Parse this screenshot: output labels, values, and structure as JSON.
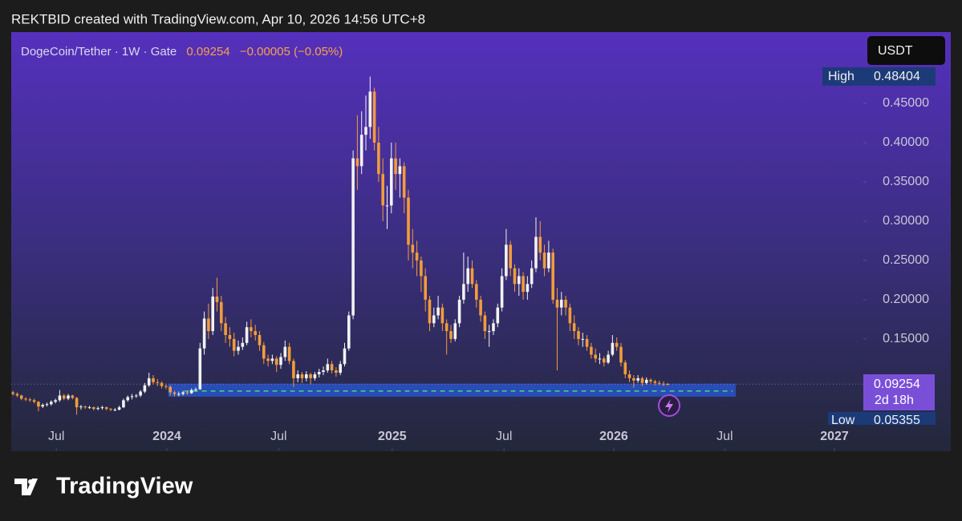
{
  "attribution": "REKTBID created with TradingView.com, Apr 10, 2026 14:56 UTC+8",
  "brand": "TradingView",
  "chart_data": {
    "type": "candlestick",
    "symbol": "DogeCoin/Tether · 1W · Gate",
    "last_price": 0.09254,
    "change": "−0.00005 (−0.05%)",
    "currency": "USDT",
    "high_label": "High",
    "high": 0.48404,
    "low_label": "Low",
    "low": 0.05355,
    "countdown": "2d 18h",
    "up_color": "#f2f2f2",
    "down_color": "#f39c3a",
    "xlim": [
      -0.4,
      199.8
    ],
    "ylim": [
      0.007,
      0.5408
    ],
    "yticks": [
      {
        "value": 0.15,
        "label": "0.15000"
      },
      {
        "value": 0.2,
        "label": "0.20000"
      },
      {
        "value": 0.25,
        "label": "0.25000"
      },
      {
        "value": 0.3,
        "label": "0.30000"
      },
      {
        "value": 0.35,
        "label": "0.35000"
      },
      {
        "value": 0.4,
        "label": "0.40000"
      },
      {
        "value": 0.45,
        "label": "0.45000"
      }
    ],
    "xticks": [
      {
        "value": 10.2,
        "label": "Jul"
      },
      {
        "value": 36.2,
        "label": "2024"
      },
      {
        "value": 62.5,
        "label": "Jul"
      },
      {
        "value": 89.2,
        "label": "2025"
      },
      {
        "value": 115.5,
        "label": "Jul"
      },
      {
        "value": 141.3,
        "label": "2026"
      },
      {
        "value": 167.4,
        "label": "Jul"
      },
      {
        "value": 193.2,
        "label": "2027"
      }
    ],
    "support_zone": {
      "from": 36.5,
      "to": 170,
      "low": 0.0765,
      "high": 0.093,
      "line": 0.0837,
      "color": "#2a52c9",
      "line_color": "#3ddc84"
    },
    "candles": [
      [
        0.082,
        0.084,
        0.078,
        0.08
      ],
      [
        0.08,
        0.082,
        0.076,
        0.078
      ],
      [
        0.078,
        0.079,
        0.072,
        0.074
      ],
      [
        0.074,
        0.076,
        0.071,
        0.073
      ],
      [
        0.073,
        0.075,
        0.07,
        0.072
      ],
      [
        0.072,
        0.074,
        0.068,
        0.07
      ],
      [
        0.07,
        0.071,
        0.058,
        0.064
      ],
      [
        0.064,
        0.068,
        0.062,
        0.066
      ],
      [
        0.066,
        0.069,
        0.064,
        0.067
      ],
      [
        0.067,
        0.072,
        0.065,
        0.07
      ],
      [
        0.07,
        0.074,
        0.068,
        0.072
      ],
      [
        0.072,
        0.085,
        0.07,
        0.078
      ],
      [
        0.078,
        0.08,
        0.072,
        0.074
      ],
      [
        0.074,
        0.08,
        0.072,
        0.078
      ],
      [
        0.078,
        0.079,
        0.073,
        0.075
      ],
      [
        0.075,
        0.076,
        0.05355,
        0.063
      ],
      [
        0.063,
        0.066,
        0.06,
        0.064
      ],
      [
        0.064,
        0.065,
        0.061,
        0.063
      ],
      [
        0.063,
        0.065,
        0.061,
        0.063
      ],
      [
        0.063,
        0.064,
        0.059,
        0.061
      ],
      [
        0.061,
        0.064,
        0.059,
        0.062
      ],
      [
        0.062,
        0.065,
        0.06,
        0.063
      ],
      [
        0.063,
        0.064,
        0.059,
        0.061
      ],
      [
        0.061,
        0.062,
        0.058,
        0.06
      ],
      [
        0.06,
        0.062,
        0.058,
        0.06
      ],
      [
        0.06,
        0.065,
        0.059,
        0.063
      ],
      [
        0.063,
        0.074,
        0.062,
        0.072
      ],
      [
        0.072,
        0.078,
        0.07,
        0.076
      ],
      [
        0.076,
        0.08,
        0.073,
        0.077
      ],
      [
        0.077,
        0.08,
        0.075,
        0.078
      ],
      [
        0.078,
        0.085,
        0.076,
        0.083
      ],
      [
        0.083,
        0.094,
        0.081,
        0.091
      ],
      [
        0.091,
        0.107,
        0.089,
        0.1
      ],
      [
        0.1,
        0.104,
        0.092,
        0.095
      ],
      [
        0.095,
        0.099,
        0.09,
        0.094
      ],
      [
        0.094,
        0.096,
        0.087,
        0.09
      ],
      [
        0.09,
        0.093,
        0.086,
        0.089
      ],
      [
        0.089,
        0.091,
        0.078,
        0.082
      ],
      [
        0.082,
        0.084,
        0.077,
        0.08
      ],
      [
        0.08,
        0.083,
        0.077,
        0.08
      ],
      [
        0.08,
        0.084,
        0.078,
        0.082
      ],
      [
        0.082,
        0.084,
        0.079,
        0.081
      ],
      [
        0.081,
        0.087,
        0.08,
        0.085
      ],
      [
        0.085,
        0.088,
        0.083,
        0.086
      ],
      [
        0.086,
        0.145,
        0.085,
        0.138
      ],
      [
        0.138,
        0.185,
        0.13,
        0.176
      ],
      [
        0.176,
        0.195,
        0.15,
        0.16
      ],
      [
        0.16,
        0.215,
        0.155,
        0.204
      ],
      [
        0.204,
        0.228,
        0.185,
        0.197
      ],
      [
        0.197,
        0.205,
        0.16,
        0.17
      ],
      [
        0.17,
        0.178,
        0.145,
        0.155
      ],
      [
        0.155,
        0.165,
        0.14,
        0.15
      ],
      [
        0.15,
        0.158,
        0.128,
        0.135
      ],
      [
        0.135,
        0.148,
        0.13,
        0.14
      ],
      [
        0.14,
        0.152,
        0.136,
        0.145
      ],
      [
        0.145,
        0.172,
        0.142,
        0.165
      ],
      [
        0.165,
        0.175,
        0.152,
        0.16
      ],
      [
        0.16,
        0.168,
        0.148,
        0.155
      ],
      [
        0.155,
        0.16,
        0.135,
        0.142
      ],
      [
        0.142,
        0.146,
        0.118,
        0.125
      ],
      [
        0.125,
        0.13,
        0.115,
        0.122
      ],
      [
        0.122,
        0.13,
        0.118,
        0.125
      ],
      [
        0.125,
        0.128,
        0.108,
        0.117
      ],
      [
        0.117,
        0.132,
        0.112,
        0.127
      ],
      [
        0.127,
        0.148,
        0.122,
        0.14
      ],
      [
        0.14,
        0.145,
        0.118,
        0.122
      ],
      [
        0.122,
        0.125,
        0.089,
        0.1
      ],
      [
        0.1,
        0.11,
        0.095,
        0.105
      ],
      [
        0.105,
        0.108,
        0.094,
        0.1
      ],
      [
        0.1,
        0.109,
        0.096,
        0.105
      ],
      [
        0.105,
        0.107,
        0.092,
        0.1
      ],
      [
        0.1,
        0.108,
        0.097,
        0.105
      ],
      [
        0.105,
        0.112,
        0.101,
        0.108
      ],
      [
        0.108,
        0.115,
        0.104,
        0.11
      ],
      [
        0.11,
        0.125,
        0.107,
        0.118
      ],
      [
        0.118,
        0.122,
        0.106,
        0.11
      ],
      [
        0.11,
        0.114,
        0.102,
        0.107
      ],
      [
        0.107,
        0.122,
        0.104,
        0.118
      ],
      [
        0.118,
        0.145,
        0.115,
        0.138
      ],
      [
        0.138,
        0.185,
        0.135,
        0.18
      ],
      [
        0.18,
        0.39,
        0.175,
        0.38
      ],
      [
        0.38,
        0.435,
        0.34,
        0.37
      ],
      [
        0.37,
        0.44,
        0.36,
        0.41
      ],
      [
        0.41,
        0.46,
        0.39,
        0.42
      ],
      [
        0.42,
        0.48404,
        0.405,
        0.465
      ],
      [
        0.465,
        0.47,
        0.39,
        0.4
      ],
      [
        0.4,
        0.42,
        0.35,
        0.36
      ],
      [
        0.36,
        0.38,
        0.3,
        0.32
      ],
      [
        0.32,
        0.345,
        0.29,
        0.32
      ],
      [
        0.32,
        0.4,
        0.31,
        0.38
      ],
      [
        0.38,
        0.4,
        0.34,
        0.36
      ],
      [
        0.36,
        0.38,
        0.33,
        0.37
      ],
      [
        0.37,
        0.375,
        0.31,
        0.33
      ],
      [
        0.33,
        0.34,
        0.25,
        0.27
      ],
      [
        0.27,
        0.29,
        0.24,
        0.26
      ],
      [
        0.26,
        0.275,
        0.23,
        0.25
      ],
      [
        0.25,
        0.255,
        0.21,
        0.23
      ],
      [
        0.23,
        0.24,
        0.185,
        0.2
      ],
      [
        0.2,
        0.205,
        0.16,
        0.17
      ],
      [
        0.17,
        0.19,
        0.165,
        0.18
      ],
      [
        0.18,
        0.205,
        0.175,
        0.19
      ],
      [
        0.19,
        0.195,
        0.16,
        0.17
      ],
      [
        0.17,
        0.175,
        0.13,
        0.16
      ],
      [
        0.16,
        0.168,
        0.145,
        0.15
      ],
      [
        0.15,
        0.175,
        0.147,
        0.17
      ],
      [
        0.17,
        0.205,
        0.165,
        0.2
      ],
      [
        0.2,
        0.26,
        0.195,
        0.22
      ],
      [
        0.22,
        0.255,
        0.21,
        0.24
      ],
      [
        0.24,
        0.25,
        0.215,
        0.22
      ],
      [
        0.22,
        0.225,
        0.19,
        0.2
      ],
      [
        0.2,
        0.205,
        0.172,
        0.18
      ],
      [
        0.18,
        0.185,
        0.15,
        0.16
      ],
      [
        0.16,
        0.168,
        0.14,
        0.16
      ],
      [
        0.16,
        0.175,
        0.155,
        0.17
      ],
      [
        0.17,
        0.195,
        0.165,
        0.19
      ],
      [
        0.19,
        0.24,
        0.185,
        0.23
      ],
      [
        0.23,
        0.29,
        0.225,
        0.27
      ],
      [
        0.27,
        0.275,
        0.23,
        0.24
      ],
      [
        0.24,
        0.245,
        0.21,
        0.22
      ],
      [
        0.22,
        0.24,
        0.205,
        0.23
      ],
      [
        0.23,
        0.235,
        0.2,
        0.21
      ],
      [
        0.21,
        0.23,
        0.2,
        0.22
      ],
      [
        0.22,
        0.25,
        0.215,
        0.24
      ],
      [
        0.24,
        0.305,
        0.235,
        0.28
      ],
      [
        0.28,
        0.3,
        0.25,
        0.26
      ],
      [
        0.26,
        0.27,
        0.23,
        0.24
      ],
      [
        0.24,
        0.275,
        0.235,
        0.26
      ],
      [
        0.26,
        0.265,
        0.195,
        0.2
      ],
      [
        0.2,
        0.215,
        0.11,
        0.19
      ],
      [
        0.19,
        0.21,
        0.18,
        0.2
      ],
      [
        0.2,
        0.205,
        0.18,
        0.19
      ],
      [
        0.19,
        0.195,
        0.16,
        0.17
      ],
      [
        0.17,
        0.18,
        0.15,
        0.16
      ],
      [
        0.16,
        0.165,
        0.142,
        0.15
      ],
      [
        0.15,
        0.158,
        0.14,
        0.15
      ],
      [
        0.15,
        0.155,
        0.135,
        0.14
      ],
      [
        0.14,
        0.145,
        0.125,
        0.13
      ],
      [
        0.13,
        0.138,
        0.12,
        0.125
      ],
      [
        0.125,
        0.132,
        0.118,
        0.125
      ],
      [
        0.125,
        0.128,
        0.115,
        0.12
      ],
      [
        0.12,
        0.135,
        0.118,
        0.13
      ],
      [
        0.13,
        0.155,
        0.128,
        0.145
      ],
      [
        0.145,
        0.152,
        0.135,
        0.14
      ],
      [
        0.14,
        0.145,
        0.115,
        0.12
      ],
      [
        0.12,
        0.123,
        0.1,
        0.105
      ],
      [
        0.105,
        0.11,
        0.095,
        0.1
      ],
      [
        0.1,
        0.104,
        0.088,
        0.097
      ],
      [
        0.097,
        0.104,
        0.094,
        0.1
      ],
      [
        0.1,
        0.102,
        0.09,
        0.094
      ],
      [
        0.094,
        0.101,
        0.092,
        0.098
      ],
      [
        0.098,
        0.1,
        0.093,
        0.096
      ],
      [
        0.096,
        0.098,
        0.091,
        0.094
      ],
      [
        0.094,
        0.097,
        0.091,
        0.093
      ],
      [
        0.093,
        0.096,
        0.09,
        0.092
      ],
      [
        0.09259,
        0.094,
        0.091,
        0.09254
      ]
    ]
  }
}
